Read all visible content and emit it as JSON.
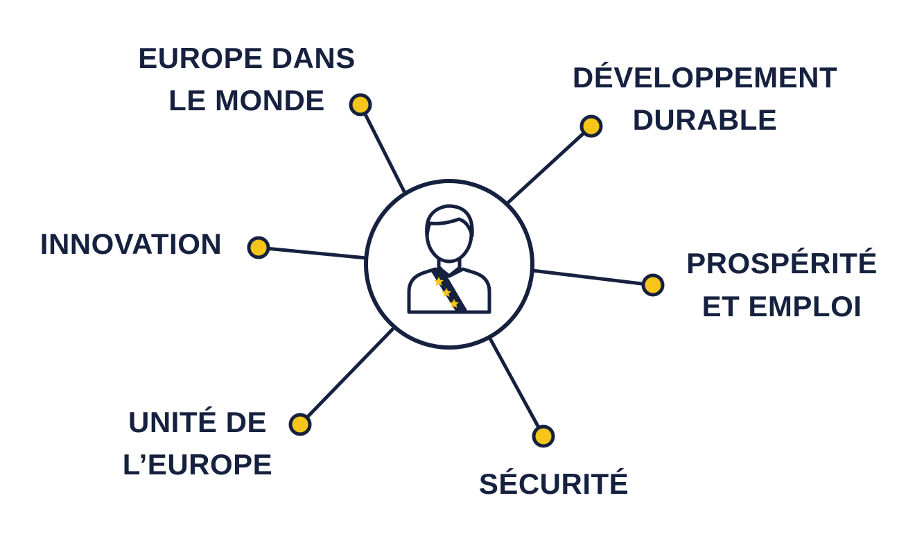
{
  "colors": {
    "navy": "#16213f",
    "accent_yellow": "#f5c518",
    "background": "#ffffff"
  },
  "center": {
    "icon": "person-with-sash-icon"
  },
  "nodes": [
    {
      "id": "europe-monde",
      "line1": "EUROPE DANS",
      "line2": "LE MONDE"
    },
    {
      "id": "developpement",
      "line1": "DÉVELOPPEMENT",
      "line2": "DURABLE"
    },
    {
      "id": "innovation",
      "line1": "INNOVATION",
      "line2": ""
    },
    {
      "id": "prosperite",
      "line1": "PROSPÉRITÉ",
      "line2": "ET EMPLOI"
    },
    {
      "id": "unite",
      "line1": "UNITÉ DE",
      "line2": "L’EUROPE"
    },
    {
      "id": "securite",
      "line1": "SÉCURITÉ",
      "line2": ""
    }
  ]
}
